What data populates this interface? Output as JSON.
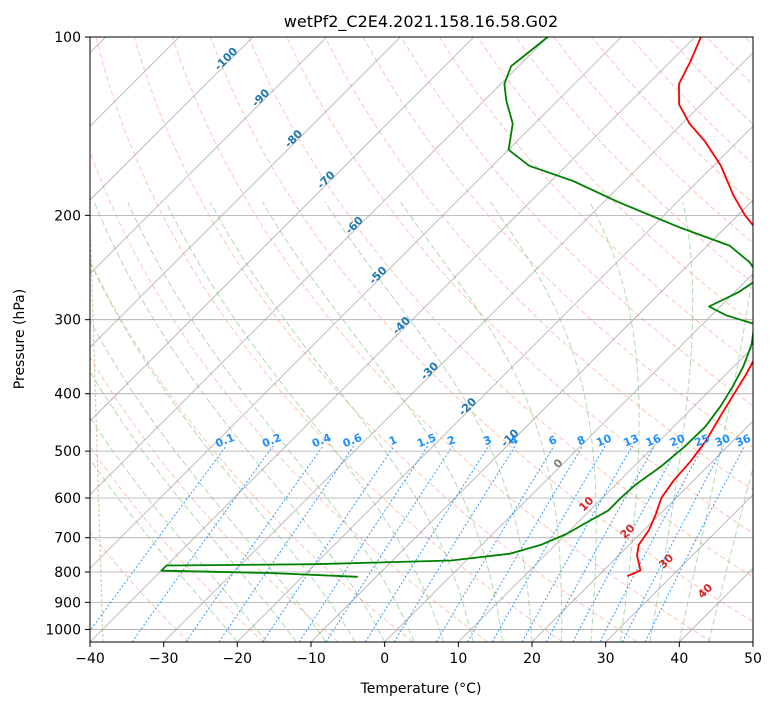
{
  "chart_data": {
    "type": "line",
    "title": "wetPf2_C2E4.2021.158.16.58.G02",
    "xlabel": "Temperature (°C)",
    "ylabel": "Pressure (hPa)",
    "xlim": [
      -40,
      50
    ],
    "ylim": [
      1050,
      100
    ],
    "x_ticks": [
      "−40",
      "−30",
      "−20",
      "−10",
      "0",
      "10",
      "20",
      "30",
      "40",
      "50"
    ],
    "y_ticks": [
      {
        "p": 100,
        "label": "100"
      },
      {
        "p": 200,
        "label": "200"
      },
      {
        "p": 300,
        "label": "300"
      },
      {
        "p": 400,
        "label": "400"
      },
      {
        "p": 500,
        "label": "500"
      },
      {
        "p": 600,
        "label": "600"
      },
      {
        "p": 700,
        "label": "700"
      },
      {
        "p": 800,
        "label": "800"
      },
      {
        "p": 900,
        "label": "900"
      },
      {
        "p": 1000,
        "label": "1000"
      }
    ],
    "skew": 1.0,
    "colors": {
      "temperature": "#ff0000",
      "dewpoint": "#008000",
      "dry_adiabat": "#ff9f80",
      "moist_adiabat": "#80c080",
      "mixing_ratio": "#1e90ff",
      "isotherm": "#999999",
      "isobar": "#aaaaaa",
      "isotherm_label": "#1f77b4",
      "wetbulb_label": "#d62728",
      "zero_label": "#808080",
      "ice_curve": "#d2b48c"
    },
    "series": [
      {
        "name": "Temperature",
        "points": [
          {
            "p": 813,
            "t": 24.0
          },
          {
            "p": 795,
            "t": 25.0
          },
          {
            "p": 780,
            "t": 24.2
          },
          {
            "p": 750,
            "t": 22.5
          },
          {
            "p": 720,
            "t": 21.3
          },
          {
            "p": 680,
            "t": 20.7
          },
          {
            "p": 640,
            "t": 19.5
          },
          {
            "p": 600,
            "t": 18.0
          },
          {
            "p": 560,
            "t": 17.3
          },
          {
            "p": 520,
            "t": 17.0
          },
          {
            "p": 480,
            "t": 16.3
          },
          {
            "p": 430,
            "t": 14.7
          },
          {
            "p": 390,
            "t": 13.4
          },
          {
            "p": 370,
            "t": 12.7
          },
          {
            "p": 340,
            "t": 11.3
          },
          {
            "p": 310,
            "t": 9.0
          },
          {
            "p": 290,
            "t": 7.6
          },
          {
            "p": 275,
            "t": 6.6
          },
          {
            "p": 255,
            "t": 3.9
          },
          {
            "p": 235,
            "t": 0.3
          },
          {
            "p": 220,
            "t": -3.0
          },
          {
            "p": 200,
            "t": -9.0
          },
          {
            "p": 185,
            "t": -13.3
          },
          {
            "p": 165,
            "t": -19.0
          },
          {
            "p": 150,
            "t": -24.5
          },
          {
            "p": 140,
            "t": -29.0
          },
          {
            "p": 130,
            "t": -33.0
          },
          {
            "p": 120,
            "t": -35.8
          },
          {
            "p": 110,
            "t": -37.3
          },
          {
            "p": 100,
            "t": -39.2
          }
        ]
      },
      {
        "name": "Dewpoint",
        "points": [
          {
            "p": 815,
            "t": -12.5
          },
          {
            "p": 803,
            "t": -25.0
          },
          {
            "p": 796,
            "t": -40.0
          },
          {
            "p": 780,
            "t": -40.0
          },
          {
            "p": 776,
            "t": -20.0
          },
          {
            "p": 765,
            "t": -2.0
          },
          {
            "p": 745,
            "t": 5.0
          },
          {
            "p": 720,
            "t": 8.0
          },
          {
            "p": 690,
            "t": 10.0
          },
          {
            "p": 660,
            "t": 11.2
          },
          {
            "p": 630,
            "t": 12.5
          },
          {
            "p": 600,
            "t": 12.5
          },
          {
            "p": 570,
            "t": 12.7
          },
          {
            "p": 530,
            "t": 13.7
          },
          {
            "p": 490,
            "t": 14.2
          },
          {
            "p": 455,
            "t": 14.3
          },
          {
            "p": 420,
            "t": 13.6
          },
          {
            "p": 390,
            "t": 12.6
          },
          {
            "p": 360,
            "t": 11.3
          },
          {
            "p": 330,
            "t": 9.4
          },
          {
            "p": 305,
            "t": 7.0
          },
          {
            "p": 295,
            "t": 2.0
          },
          {
            "p": 285,
            "t": -1.5
          },
          {
            "p": 270,
            "t": 0.5
          },
          {
            "p": 255,
            "t": 1.5
          },
          {
            "p": 240,
            "t": -2.0
          },
          {
            "p": 225,
            "t": -7.0
          },
          {
            "p": 210,
            "t": -16.0
          },
          {
            "p": 190,
            "t": -28.0
          },
          {
            "p": 175,
            "t": -37.0
          },
          {
            "p": 165,
            "t": -45.0
          },
          {
            "p": 155,
            "t": -50.0
          },
          {
            "p": 140,
            "t": -53.0
          },
          {
            "p": 128,
            "t": -57.0
          },
          {
            "p": 120,
            "t": -59.5
          },
          {
            "p": 112,
            "t": -61.0
          },
          {
            "p": 106,
            "t": -60.5
          },
          {
            "p": 100,
            "t": -60.0
          }
        ]
      }
    ],
    "isotherm_labels": [
      {
        "t": -100,
        "text": "-100"
      },
      {
        "t": -90,
        "text": "-90"
      },
      {
        "t": -80,
        "text": "-80"
      },
      {
        "t": -70,
        "text": "-70"
      },
      {
        "t": -60,
        "text": "-60"
      },
      {
        "t": -50,
        "text": "-50"
      },
      {
        "t": -40,
        "text": "-40"
      },
      {
        "t": -30,
        "text": "-30"
      },
      {
        "t": -20,
        "text": "-20"
      },
      {
        "t": -10,
        "text": "-10"
      }
    ],
    "mixing_ratio_labels": [
      "0.1",
      "0.2",
      "0.4",
      "0.6",
      "1",
      "1.5",
      "2",
      "3",
      "4",
      "6",
      "8",
      "10",
      "13",
      "16",
      "20",
      "25",
      "30",
      "36"
    ],
    "wetbulb_labels": [
      {
        "t": 0,
        "p": 530,
        "text": "0"
      },
      {
        "t": 10,
        "p": 620,
        "text": "10"
      },
      {
        "t": 20,
        "p": 690,
        "text": "20"
      },
      {
        "t": 30,
        "p": 775,
        "text": "30"
      },
      {
        "t": 40,
        "p": 870,
        "text": "40"
      }
    ]
  }
}
